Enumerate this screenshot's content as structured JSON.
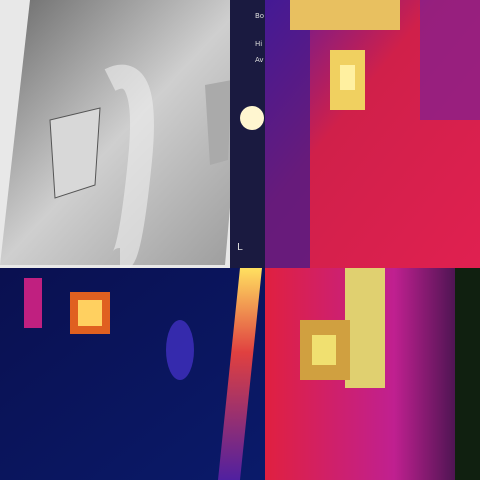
{
  "overlay_labels": [
    "Bo",
    "Hi",
    "Av"
  ],
  "corner_label": "L"
}
